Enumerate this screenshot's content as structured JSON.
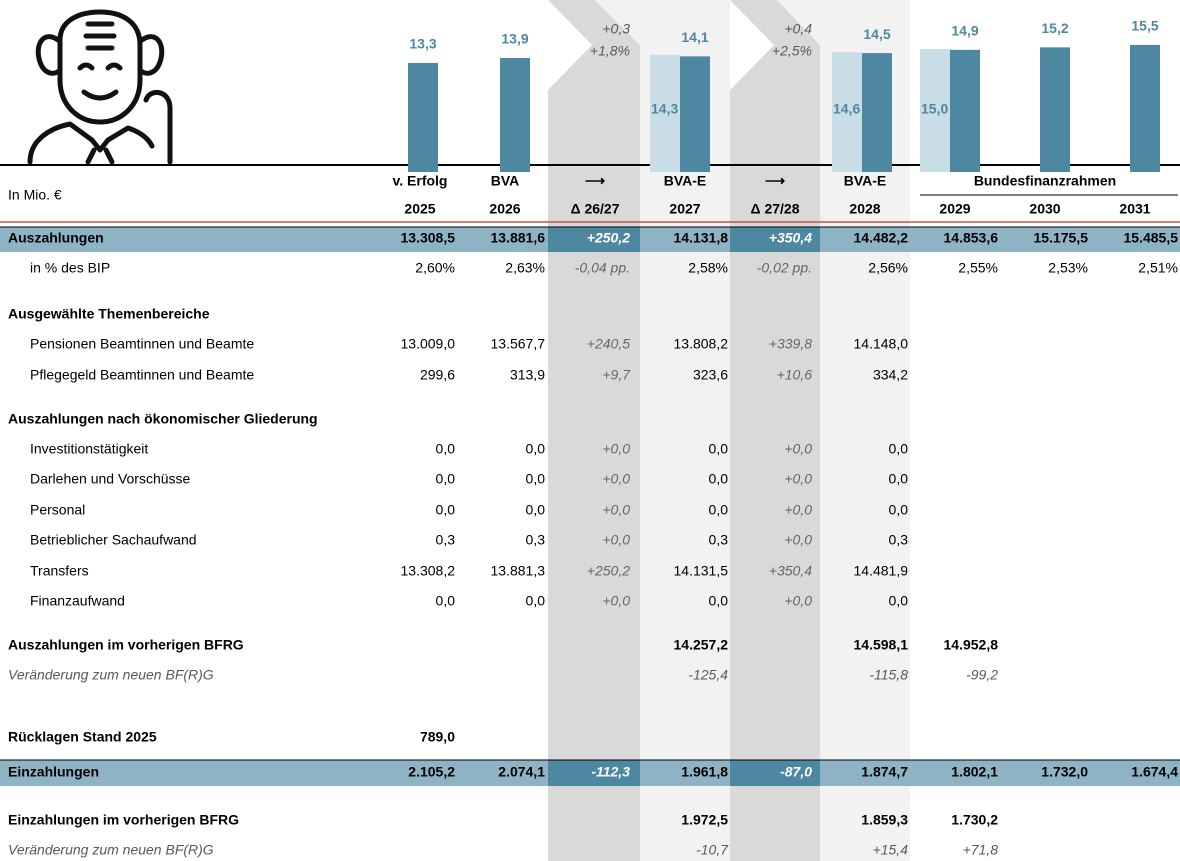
{
  "chart": {
    "values": [
      13.3,
      13.9,
      14.1,
      14.5,
      14.9,
      15.2,
      15.5
    ],
    "value_labels": [
      "13,3",
      "13,9",
      "14,1",
      "14,5",
      "14,9",
      "15,2",
      "15,5"
    ],
    "previous_values": [
      14.3,
      14.6,
      15.0
    ],
    "previous_labels": [
      "14,3",
      "14,6",
      "15,0"
    ],
    "deltas": [
      [
        "+0,3",
        "+1,8%"
      ],
      [
        "+0,4",
        "+2,5%"
      ]
    ]
  },
  "header": {
    "unit": "In Mio. €",
    "columns": [
      {
        "label": "v. Erfolg",
        "year": "2025"
      },
      {
        "label": "BVA",
        "year": "2026"
      },
      {
        "label": "⟶",
        "year": "Δ 26/27"
      },
      {
        "label": "BVA-E",
        "year": "2027"
      },
      {
        "label": "⟶",
        "year": "Δ 27/28"
      },
      {
        "label": "BVA-E",
        "year": "2028"
      },
      {
        "year": "2029"
      },
      {
        "year": "2030"
      },
      {
        "year": "2031"
      }
    ],
    "group": "Bundesfinanzrahmen"
  },
  "table": {
    "rows": [
      {
        "label": "Auszahlungen",
        "cells": [
          "13.308,5",
          "13.881,6",
          "+250,2",
          "14.131,8",
          "+350,4",
          "14.482,2",
          "14.853,6",
          "15.175,5",
          "15.485,5"
        ]
      },
      {
        "label": "in % des BIP",
        "cells": [
          "2,60%",
          "2,63%",
          "-0,04 pp.",
          "2,58%",
          "-0,02 pp.",
          "2,56%",
          "2,55%",
          "2,53%",
          "2,51%"
        ]
      },
      {
        "label": "Ausgewählte Themenbereiche"
      },
      {
        "label": "Pensionen Beamtinnen und Beamte",
        "cells": [
          "13.009,0",
          "13.567,7",
          "+240,5",
          "13.808,2",
          "+339,8",
          "14.148,0",
          null,
          null,
          null
        ]
      },
      {
        "label": "Pflegegeld Beamtinnen und Beamte",
        "cells": [
          "299,6",
          "313,9",
          "+9,7",
          "323,6",
          "+10,6",
          "334,2",
          null,
          null,
          null
        ]
      },
      {
        "label": "Auszahlungen nach ökonomischer Gliederung"
      },
      {
        "label": "Investitionstätigkeit",
        "cells": [
          "0,0",
          "0,0",
          "+0,0",
          "0,0",
          "+0,0",
          "0,0",
          null,
          null,
          null
        ]
      },
      {
        "label": "Darlehen und Vorschüsse",
        "cells": [
          "0,0",
          "0,0",
          "+0,0",
          "0,0",
          "+0,0",
          "0,0",
          null,
          null,
          null
        ]
      },
      {
        "label": "Personal",
        "cells": [
          "0,0",
          "0,0",
          "+0,0",
          "0,0",
          "+0,0",
          "0,0",
          null,
          null,
          null
        ]
      },
      {
        "label": "Betrieblicher Sachaufwand",
        "cells": [
          "0,3",
          "0,3",
          "+0,0",
          "0,3",
          "+0,0",
          "0,3",
          null,
          null,
          null
        ]
      },
      {
        "label": "Transfers",
        "cells": [
          "13.308,2",
          "13.881,3",
          "+250,2",
          "14.131,5",
          "+350,4",
          "14.481,9",
          null,
          null,
          null
        ]
      },
      {
        "label": "Finanzaufwand",
        "cells": [
          "0,0",
          "0,0",
          "+0,0",
          "0,0",
          "+0,0",
          "0,0",
          null,
          null,
          null
        ]
      },
      {
        "label": "Auszahlungen im vorherigen BFRG",
        "cells": [
          null,
          null,
          null,
          "14.257,2",
          null,
          "14.598,1",
          "14.952,8",
          null,
          null
        ]
      },
      {
        "label": "Veränderung zum neuen BF(R)G",
        "cells": [
          null,
          null,
          null,
          "-125,4",
          null,
          "-115,8",
          "-99,2",
          null,
          null
        ]
      },
      {
        "label": "Rücklagen Stand 2025",
        "cells": [
          "789,0",
          null,
          null,
          null,
          null,
          null,
          null,
          null,
          null
        ]
      },
      {
        "label": "Einzahlungen",
        "cells": [
          "2.105,2",
          "2.074,1",
          "-112,3",
          "1.961,8",
          "-87,0",
          "1.874,7",
          "1.802,1",
          "1.732,0",
          "1.674,4"
        ]
      },
      {
        "label": "Einzahlungen im vorherigen BFRG",
        "cells": [
          null,
          null,
          null,
          "1.972,5",
          null,
          "1.859,3",
          "1.730,2",
          null,
          null
        ]
      },
      {
        "label": "Veränderung zum neuen BF(R)G",
        "cells": [
          null,
          null,
          null,
          "-10,7",
          null,
          "+15,4",
          "+71,8",
          null,
          null
        ]
      }
    ]
  }
}
